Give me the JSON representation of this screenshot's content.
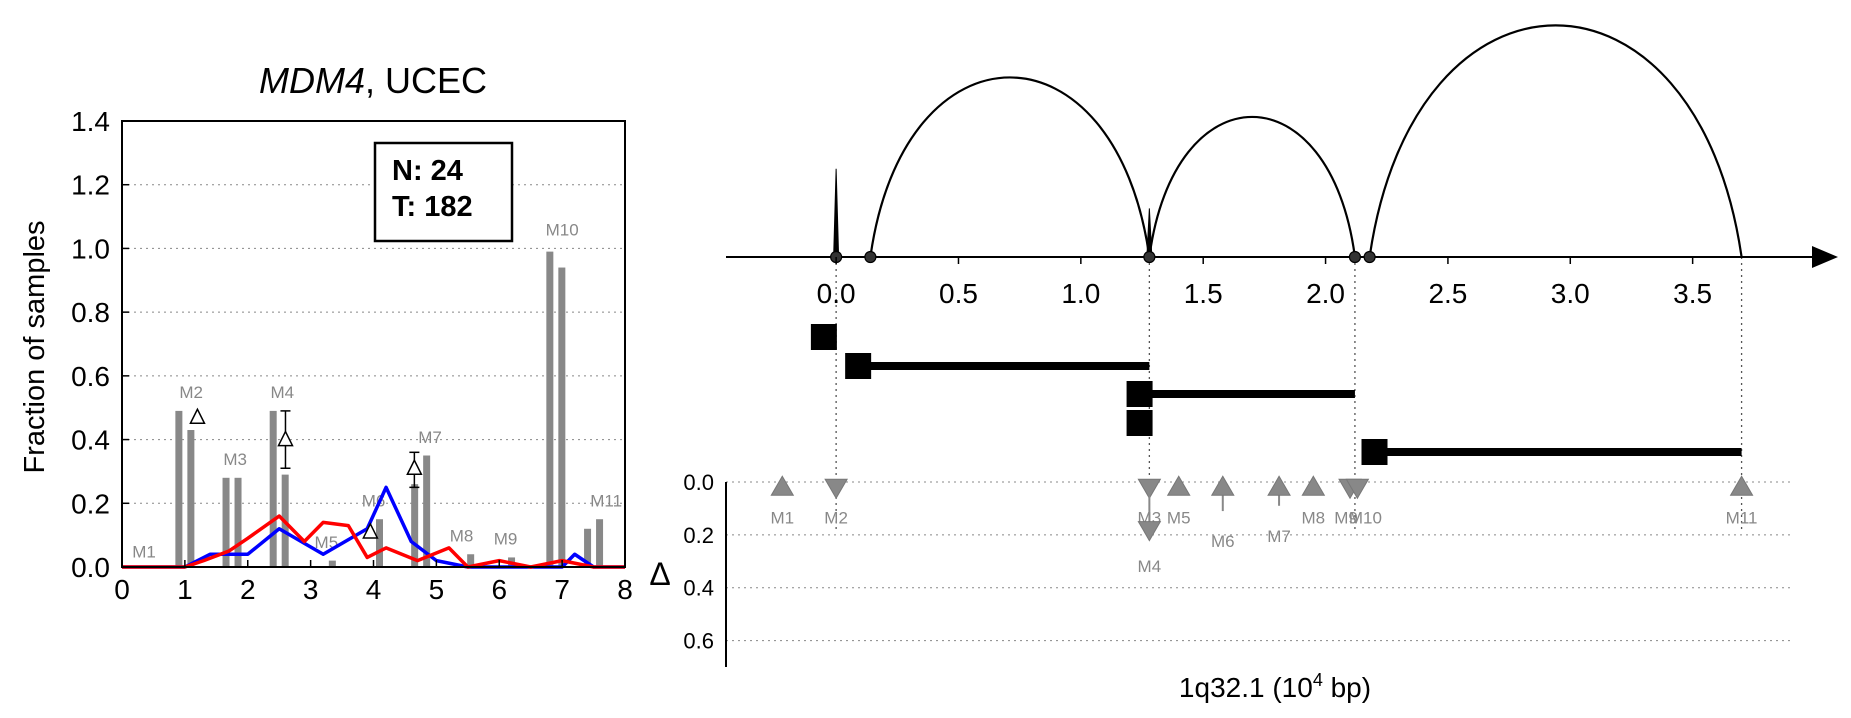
{
  "chart_data": [
    {
      "type": "bar",
      "title_gene": "MDM4",
      "title_suffix": ", UCEC",
      "ylabel": "Fraction of samples",
      "xlim": [
        0,
        8
      ],
      "ylim": [
        0,
        1.4
      ],
      "xticks": [
        "0",
        "1",
        "2",
        "3",
        "4",
        "5",
        "6",
        "7",
        "8"
      ],
      "yticks": [
        "0.0",
        "0.2",
        "0.4",
        "0.6",
        "0.8",
        "1.0",
        "1.2",
        "1.4"
      ],
      "yticks_values": [
        0.0,
        0.2,
        0.4,
        0.6,
        0.8,
        1.0,
        1.2,
        1.4
      ],
      "legend_box": {
        "n_label": "N: 24",
        "t_label": "T: 182"
      },
      "bars": [
        {
          "x": 0.0,
          "normal": 0.0,
          "tumor": 0.0
        },
        {
          "x": 1.0,
          "normal": 0.49,
          "tumor": 0.43
        },
        {
          "x": 1.75,
          "normal": 0.28,
          "tumor": 0.28
        },
        {
          "x": 2.5,
          "normal": 0.49,
          "tumor": 0.29
        },
        {
          "x": 3.25,
          "normal": 0.0,
          "tumor": 0.02
        },
        {
          "x": 4.0,
          "normal": 0.0,
          "tumor": 0.15
        },
        {
          "x": 4.75,
          "normal": 0.26,
          "tumor": 0.35
        },
        {
          "x": 5.45,
          "normal": 0.0,
          "tumor": 0.04
        },
        {
          "x": 6.1,
          "normal": 0.0,
          "tumor": 0.03
        },
        {
          "x": 6.9,
          "normal": 0.99,
          "tumor": 0.94
        },
        {
          "x": 7.5,
          "normal": 0.12,
          "tumor": 0.15
        }
      ],
      "motif_labels": [
        {
          "text": "M1",
          "x": 0.35,
          "y": 0.03
        },
        {
          "text": "M2",
          "x": 1.1,
          "y": 0.53
        },
        {
          "text": "M3",
          "x": 1.8,
          "y": 0.32
        },
        {
          "text": "M4",
          "x": 2.55,
          "y": 0.53
        },
        {
          "text": "M5",
          "x": 3.25,
          "y": 0.06
        },
        {
          "text": "M6",
          "x": 4.0,
          "y": 0.19
        },
        {
          "text": "M7",
          "x": 4.9,
          "y": 0.39
        },
        {
          "text": "M8",
          "x": 5.4,
          "y": 0.08
        },
        {
          "text": "M9",
          "x": 6.1,
          "y": 0.07
        },
        {
          "text": "M10",
          "x": 7.0,
          "y": 1.04
        },
        {
          "text": "M11",
          "x": 7.7,
          "y": 0.19
        }
      ],
      "delta_markers": [
        {
          "x": 1.2,
          "y": 0.47
        },
        {
          "x": 2.6,
          "y": 0.4,
          "err": [
            0.31,
            0.49
          ]
        },
        {
          "x": 3.95,
          "y": 0.11
        },
        {
          "x": 4.65,
          "y": 0.31,
          "err": [
            0.25,
            0.36
          ]
        }
      ],
      "series": [
        {
          "color": "#0000ff",
          "x": [
            0,
            1.0,
            1.4,
            2.0,
            2.5,
            3.2,
            3.9,
            4.2,
            4.6,
            5.0,
            5.5,
            6.5,
            7.0,
            7.2,
            7.5,
            8.0
          ],
          "y": [
            0,
            0.0,
            0.04,
            0.04,
            0.12,
            0.04,
            0.12,
            0.25,
            0.08,
            0.02,
            0.0,
            0.0,
            0.0,
            0.04,
            0.0,
            0.0
          ]
        },
        {
          "color": "#ff0000",
          "x": [
            0,
            1.0,
            1.3,
            1.7,
            2.0,
            2.5,
            2.9,
            3.2,
            3.6,
            3.9,
            4.2,
            4.7,
            5.2,
            5.5,
            6.0,
            6.5,
            7.0,
            7.5,
            8.0
          ],
          "y": [
            0,
            0.0,
            0.02,
            0.05,
            0.09,
            0.16,
            0.08,
            0.14,
            0.13,
            0.03,
            0.06,
            0.02,
            0.06,
            0.0,
            0.02,
            0.0,
            0.02,
            0.0,
            0.0
          ]
        }
      ]
    },
    {
      "type": "diagram",
      "xlabel_base": "1q32.1 (10",
      "xlabel_exp": "4",
      "xlabel_unit": " bp)",
      "xticks": [
        "0.0",
        "0.5",
        "1.0",
        "1.5",
        "2.0",
        "2.5",
        "3.0",
        "3.5"
      ],
      "xticks_values": [
        0.0,
        0.5,
        1.0,
        1.5,
        2.0,
        2.5,
        3.0,
        3.5
      ],
      "xlim": [
        -0.45,
        4.0
      ],
      "arcs": [
        {
          "from": 0.14,
          "to": 1.28,
          "peak": 1.0
        },
        {
          "from": 1.28,
          "to": 2.12,
          "peak": 0.78
        },
        {
          "from": 2.18,
          "to": 3.7,
          "peak": 1.29
        }
      ],
      "spikes": [
        {
          "x": 0.0,
          "height": 0.49
        },
        {
          "x": 1.28,
          "height": 0.27
        }
      ],
      "arc_nodes": [
        0.0,
        0.14,
        1.28,
        2.12,
        2.18
      ],
      "exon_rows": [
        {
          "start": -0.05,
          "end": 0.0
        },
        {
          "start": 0.09,
          "end": 1.28
        },
        {
          "start": 1.24,
          "end": 2.12
        },
        {
          "start": 1.24,
          "end": 1.28
        },
        {
          "start": 2.2,
          "end": 3.7
        }
      ],
      "guides": [
        0.0,
        1.28,
        2.12,
        3.7
      ],
      "delta_axis": {
        "label": "Δ",
        "ylim": [
          0,
          0.7
        ],
        "yticks": [
          "0.0",
          "0.2",
          "0.4",
          "0.6"
        ],
        "yticks_values": [
          0.0,
          0.2,
          0.4,
          0.6
        ]
      },
      "motif_markers": [
        {
          "name": "M1",
          "pos": -0.22,
          "dir": "up",
          "delta": 0.02
        },
        {
          "name": "M2",
          "pos": 0.0,
          "dir": "down",
          "delta": 0.02
        },
        {
          "name": "M3",
          "pos": 1.28,
          "dir": "down",
          "delta": 0.02
        },
        {
          "name": "M4",
          "pos": 1.28,
          "dir": "down",
          "delta": 0.18
        },
        {
          "name": "M5",
          "pos": 1.4,
          "dir": "up",
          "delta": 0.02
        },
        {
          "name": "M6",
          "pos": 1.58,
          "dir": "up",
          "delta": 0.11
        },
        {
          "name": "M7",
          "pos": 1.81,
          "dir": "up",
          "delta": 0.09
        },
        {
          "name": "M8",
          "pos": 1.95,
          "dir": "up",
          "delta": 0.02
        },
        {
          "name": "M9",
          "pos": 2.1,
          "dir": "down",
          "delta": 0.02
        },
        {
          "name": "M10",
          "pos": 2.13,
          "dir": "down",
          "delta": 0.02
        },
        {
          "name": "M11",
          "pos": 3.7,
          "dir": "up",
          "delta": 0.02
        }
      ]
    }
  ]
}
